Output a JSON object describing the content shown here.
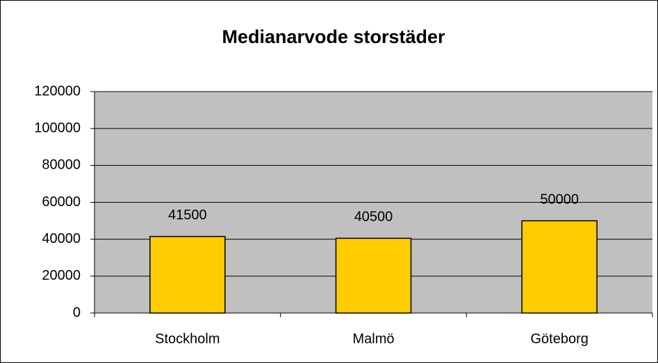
{
  "chart_data": {
    "type": "bar",
    "title": "Medianarvode storstäder",
    "categories": [
      "Stockholm",
      "Malmö",
      "Göteborg"
    ],
    "values": [
      41500,
      40500,
      50000
    ],
    "color": "#ffcc00",
    "ylim": [
      0,
      120000
    ],
    "yticks": [
      0,
      20000,
      40000,
      60000,
      80000,
      100000,
      120000
    ],
    "grid": true
  }
}
